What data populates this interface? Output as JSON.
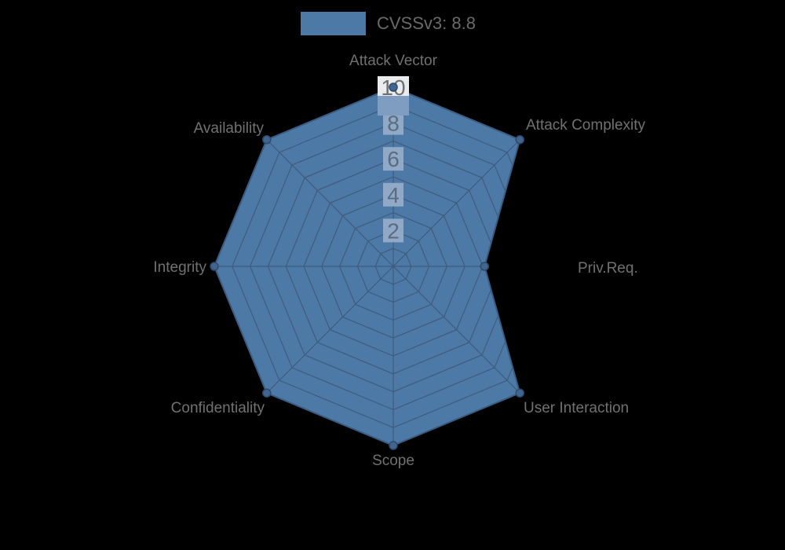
{
  "page": {
    "background_color": "#000000"
  },
  "legend": {
    "label": "CVSSv3: 8.8",
    "swatch_color": "#4d79a7",
    "text_color": "#6a6a6a",
    "position": "top-center"
  },
  "chart_data": {
    "type": "radar",
    "title": "CVSSv3: 8.8",
    "categories": [
      "Attack Vector",
      "Attack Complexity",
      "Priv.Req.",
      "User Interaction",
      "Scope",
      "Confidentiality",
      "Integrity",
      "Availability"
    ],
    "series": [
      {
        "name": "CVSSv3: 8.8",
        "values": [
          10,
          10,
          5.1,
          10,
          10,
          10,
          10,
          10
        ],
        "fill_color": "#4d79a7",
        "line_color": "#3b5c80",
        "marker_color": "#426590",
        "marker_border_color": "#2d4a69"
      }
    ],
    "rlim": [
      0,
      10
    ],
    "ring_count": 10,
    "ring_step": 1,
    "tick_values": [
      2,
      4,
      6,
      8,
      10
    ],
    "grid": {
      "shape": "polygon",
      "color": "#3f5c7c",
      "visible_only_inside_fill": true
    },
    "tick_style": {
      "backdrop_color": "#90a9c6",
      "digit_color": "#5b6c80",
      "top_backdrop_white": "#e9ebed",
      "top_backdrop_band": "#7e9dc1",
      "top_digit_color": "#6f6f6f"
    },
    "axis_label_color": "#717171",
    "legend_position": "top"
  }
}
